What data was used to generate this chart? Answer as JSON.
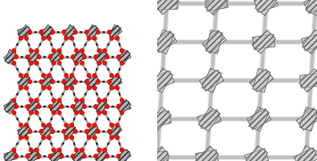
{
  "fig_width": 3.55,
  "fig_height": 1.8,
  "dpi": 100,
  "bg_color": "#ffffff",
  "left_bg": "#f5f5f5",
  "right_bg": "#ffffff",
  "red_color": "#ee1100",
  "black_color": "#111111",
  "bond_white": "#ffffff",
  "bond_gray": "#aaaaaa",
  "cluster_fill": "#b0b0b0",
  "cluster_edge": "#555555",
  "right_tube_outer": "#e0e0e0",
  "right_tube_inner": "#b8b8b8",
  "right_cluster_fill": "#c8c8c8",
  "right_node": "#e8e8e8"
}
